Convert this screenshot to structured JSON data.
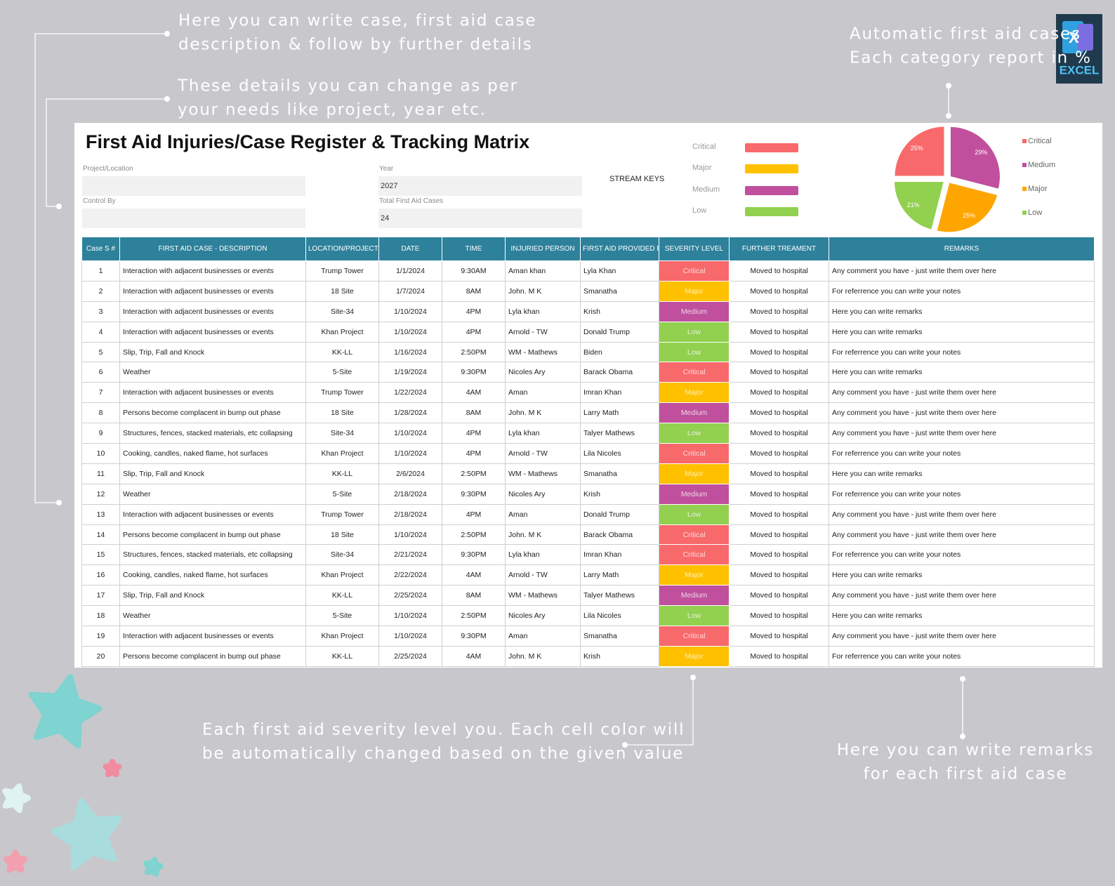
{
  "annotations": [
    [
      "Here you can write case, first aid case",
      "description & follow by further details"
    ],
    [
      "These details you can change as per",
      "your needs like project, year etc."
    ],
    [
      "Automatic first aid cases",
      "Each category report in %"
    ],
    [
      "Each first aid severity level you. Each cell color will",
      "be automatically changed based on the given value"
    ],
    [
      "Here you can write remarks",
      "for each first aid case"
    ]
  ],
  "logo": "EXCEL",
  "sheet": {
    "title": "First Aid Injuries/Case Register & Tracking Matrix",
    "fields": [
      {
        "label": "Project/Location"
      },
      {
        "label": "Control By"
      },
      {
        "label": "Year",
        "value": 2027
      },
      {
        "label": "Total First Aid Cases",
        "value": 24
      }
    ],
    "stream_keys": {
      "label": "STREAM KEYS",
      "items": [
        {
          "name": "Critical",
          "color": "#f8696b"
        },
        {
          "name": "Major",
          "color": "#ffc000"
        },
        {
          "name": "Medium",
          "color": "#c0509d"
        },
        {
          "name": "Low",
          "color": "#92d050"
        }
      ]
    }
  },
  "chart_data": {
    "type": "pie",
    "categories": [
      "Critical",
      "Medium",
      "Major",
      "Low"
    ],
    "values": [
      25,
      29,
      25,
      21
    ],
    "value_labels": [
      "25%",
      "29%",
      "25%",
      "21%"
    ],
    "colors": [
      "#f8696b",
      "#c0509d",
      "#ffa500",
      "#92d050"
    ]
  },
  "table": {
    "headers": [
      "Case S #",
      "FIRST AID CASE - DESCRIPTION",
      "LOCATION/PROJECT",
      "DATE",
      "TIME",
      "INJURIED PERSON",
      "FIRST AID PROVIDED BY",
      "SEVERITY LEVEL",
      "FURTHER TREAMENT",
      "REMARKS"
    ],
    "rows": [
      [
        1,
        "Interaction with adjacent  businesses or  events",
        "Trump Tower",
        "1/1/2024",
        "9:30AM",
        "Aman khan",
        "Lyla Khan",
        "Critical",
        "Moved to hospital",
        "Any comment you have - just write them over here"
      ],
      [
        2,
        "Interaction with adjacent  businesses or  events",
        "18 Site",
        "1/7/2024",
        "8AM",
        "John. M K",
        "Smanatha",
        "Major",
        "Moved to hospital",
        "For referrence you can write your notes"
      ],
      [
        3,
        "Interaction with adjacent  businesses or  events",
        "Site-34",
        "1/10/2024",
        "4PM",
        "Lyla khan",
        "Krish",
        "Medium",
        "Moved to hospital",
        "Here you can write remarks"
      ],
      [
        4,
        "Interaction with adjacent  businesses or  events",
        "Khan Project",
        "1/10/2024",
        "4PM",
        "Arnold - TW",
        "Donald Trump",
        "Low",
        "Moved to hospital",
        "Here you can write remarks"
      ],
      [
        5,
        "Slip, Trip, Fall and Knock",
        "KK-LL",
        "1/16/2024",
        "2:50PM",
        "WM - Mathews",
        "Biden",
        "Low",
        "Moved to hospital",
        "For referrence you can write your notes"
      ],
      [
        6,
        "Weather",
        "5-Site",
        "1/19/2024",
        "9:30PM",
        "Nicoles Ary",
        "Barack Obama",
        "Critical",
        "Moved to hospital",
        "Here you can write remarks"
      ],
      [
        7,
        "Interaction with adjacent  businesses or  events",
        "Trump Tower",
        "1/22/2024",
        "4AM",
        "Aman",
        "Imran Khan",
        "Major",
        "Moved to hospital",
        "Any comment you have - just write them over here"
      ],
      [
        8,
        "Persons become complacent in bump out phase",
        "18 Site",
        "1/28/2024",
        "8AM",
        "John. M K",
        "Larry Math",
        "Medium",
        "Moved to hospital",
        "Any comment you have - just write them over here"
      ],
      [
        9,
        "Structures, fences, stacked materials, etc collapsing",
        "Site-34",
        "1/10/2024",
        "4PM",
        "Lyla khan",
        "Talyer Mathews",
        "Low",
        "Moved to hospital",
        "Any comment you have - just write them over here"
      ],
      [
        10,
        "Cooking, candles, naked flame, hot surfaces",
        "Khan Project",
        "1/10/2024",
        "4PM",
        "Arnold - TW",
        "Lila Nicoles",
        "Critical",
        "Moved to hospital",
        "For referrence you can write your notes"
      ],
      [
        11,
        "Slip, Trip, Fall and Knock",
        "KK-LL",
        "2/6/2024",
        "2:50PM",
        "WM - Mathews",
        "Smanatha",
        "Major",
        "Moved to hospital",
        "Here you can write remarks"
      ],
      [
        12,
        "Weather",
        "5-Site",
        "2/18/2024",
        "9:30PM",
        "Nicoles Ary",
        "Krish",
        "Medium",
        "Moved to hospital",
        "For referrence you can write your notes"
      ],
      [
        13,
        "Interaction with adjacent  businesses or  events",
        "Trump Tower",
        "2/18/2024",
        "4PM",
        "Aman",
        "Donald Trump",
        "Low",
        "Moved to hospital",
        "Any comment you have - just write them over here"
      ],
      [
        14,
        "Persons become complacent in bump out phase",
        "18 Site",
        "1/10/2024",
        "2:50PM",
        "John. M K",
        "Barack Obama",
        "Critical",
        "Moved to hospital",
        "Any comment you have - just write them over here"
      ],
      [
        15,
        "Structures, fences, stacked materials, etc collapsing",
        "Site-34",
        "2/21/2024",
        "9:30PM",
        "Lyla khan",
        "Imran Khan",
        "Critical",
        "Moved to hospital",
        "For referrence you can write your notes"
      ],
      [
        16,
        "Cooking, candles, naked flame, hot surfaces",
        "Khan Project",
        "2/22/2024",
        "4AM",
        "Arnold - TW",
        "Larry Math",
        "Major",
        "Moved to hospital",
        "Here you can write remarks"
      ],
      [
        17,
        "Slip, Trip, Fall and Knock",
        "KK-LL",
        "2/25/2024",
        "8AM",
        "WM - Mathews",
        "Talyer Mathews",
        "Medium",
        "Moved to hospital",
        "Any comment you have - just write them over here"
      ],
      [
        18,
        "Weather",
        "5-Site",
        "1/10/2024",
        "2:50PM",
        "Nicoles Ary",
        "Lila Nicoles",
        "Low",
        "Moved to hospital",
        "Here you can write remarks"
      ],
      [
        19,
        "Interaction with adjacent  businesses or  events",
        "Khan Project",
        "1/10/2024",
        "9:30PM",
        "Aman",
        "Smanatha",
        "Critical",
        "Moved to hospital",
        "Any comment you have - just write them over here"
      ],
      [
        20,
        "Persons become complacent in bump out phase",
        "KK-LL",
        "2/25/2024",
        "4AM",
        "John. M K",
        "Krish",
        "Major",
        "Moved to hospital",
        "For referrence you can write your notes"
      ]
    ]
  }
}
